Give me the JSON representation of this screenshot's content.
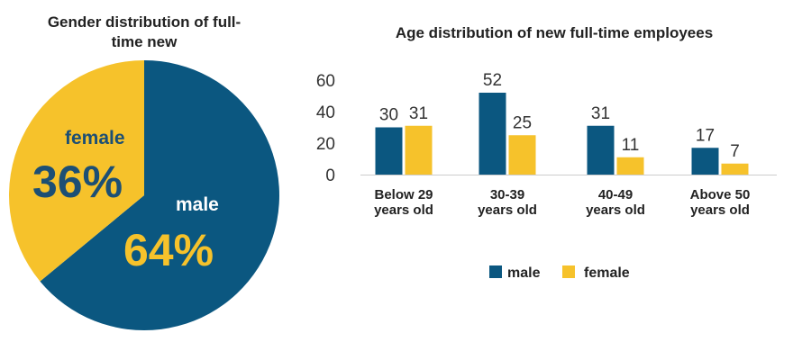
{
  "colors": {
    "male": "#0b5780",
    "female": "#f6c22b",
    "male_label": "#ffffff",
    "female_label": "#1c4f74",
    "male_pct": "#f6c22b",
    "female_pct": "#1c4f74"
  },
  "chart_data": [
    {
      "type": "pie",
      "title": "Gender distribution of full-time new",
      "slices": [
        {
          "label": "male",
          "value": 64,
          "display": "64%"
        },
        {
          "label": "female",
          "value": 36,
          "display": "36%"
        }
      ]
    },
    {
      "type": "bar",
      "title": "Age distribution of new full-time employees",
      "categories": [
        [
          "Below 29",
          "years old"
        ],
        [
          "30-39",
          "years old"
        ],
        [
          "40-49",
          "years old"
        ],
        [
          "Above 50",
          "years old"
        ]
      ],
      "series": [
        {
          "name": "male",
          "values": [
            30,
            52,
            31,
            17
          ]
        },
        {
          "name": "female",
          "values": [
            31,
            25,
            11,
            7
          ]
        }
      ],
      "yticks": [
        0,
        20,
        40,
        60
      ],
      "ylim": [
        0,
        60
      ],
      "legend": "bottom"
    }
  ]
}
